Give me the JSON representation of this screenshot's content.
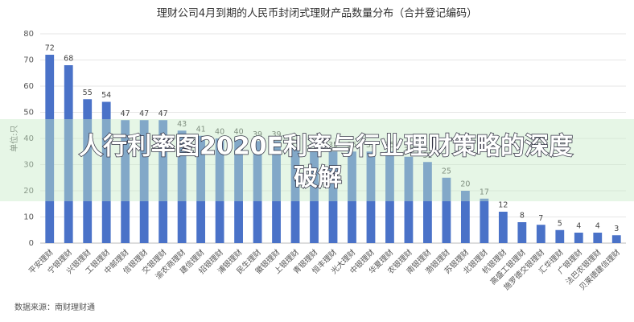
{
  "chart_data": {
    "type": "bar",
    "title": "理财公司4月到期的人民币封闭式理财产品数量分布（合并登记编码）",
    "y_label": "单位:只",
    "source": "数据来源：南财理财通",
    "categories": [
      "平安理财",
      "宁银理财",
      "兴银理财",
      "工银理财",
      "中邮理财",
      "信银理财",
      "交银理财",
      "渝农商理财",
      "建信理财",
      "招银理财",
      "浦银理财",
      "民生理财",
      "徽银理财",
      "上银理财",
      "青银理财",
      "恒丰理财",
      "光大理财",
      "中银理财",
      "华夏理财",
      "农银理财",
      "南银理财",
      "渤银理财",
      "苏银理财",
      "北银理财",
      "杭银理财",
      "高盛工银理财",
      "施罗德交银理财",
      "汇华理财",
      "广银理财",
      "法巴农银理财",
      "贝莱德建信理财"
    ],
    "values": [
      72,
      68,
      55,
      54,
      47,
      47,
      47,
      43,
      41,
      40,
      40,
      39,
      39,
      36,
      36,
      35,
      35,
      35,
      35,
      33,
      31,
      25,
      20,
      17,
      12,
      8,
      7,
      5,
      4,
      4,
      3
    ],
    "color": "#4a72c8",
    "ylim": [
      0,
      80
    ],
    "yticks": [
      0,
      10,
      20,
      30,
      40,
      50,
      60,
      70,
      80
    ],
    "grid": true
  },
  "overlay": {
    "line1": "人行利率图2020E利率与行业理财策略的深度",
    "line2": "破解"
  }
}
